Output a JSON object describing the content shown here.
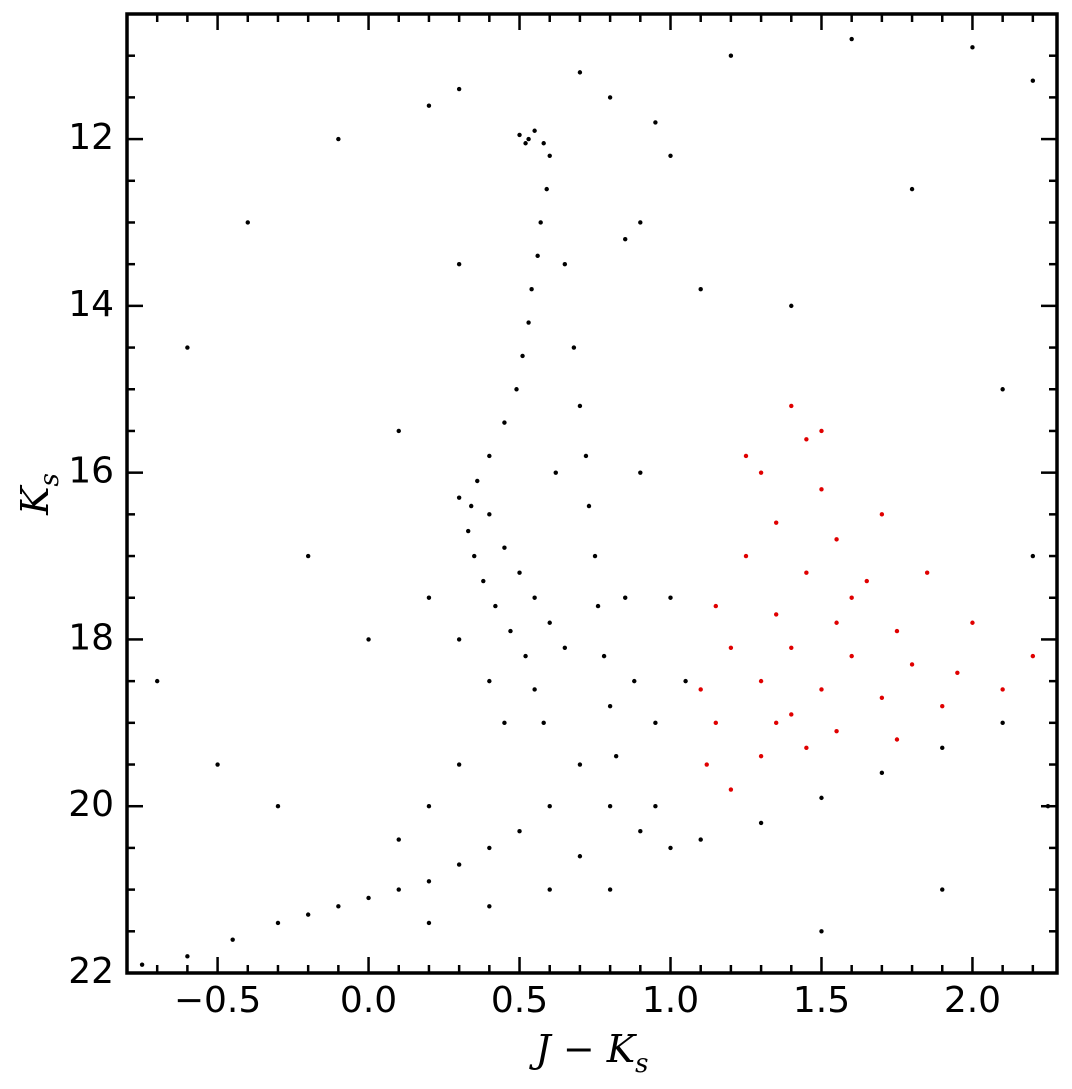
{
  "chart_data": {
    "type": "scatter",
    "x_label": [
      "J − K",
      "s"
    ],
    "y_label": [
      "K",
      "s"
    ],
    "xlim": [
      -0.8,
      2.28
    ],
    "ylim": [
      22,
      10.5
    ],
    "xticks": [
      {
        "value": -0.5,
        "label": "−0.5"
      },
      {
        "value": 0,
        "label": "0.0"
      },
      {
        "value": 0.5,
        "label": "0.5"
      },
      {
        "value": 1,
        "label": "1.0"
      },
      {
        "value": 1.5,
        "label": "1.5"
      },
      {
        "value": 2,
        "label": "2.0"
      }
    ],
    "yticks": [
      12,
      14,
      16,
      18,
      20,
      22
    ],
    "x_minor_divisions": 5,
    "y_minor_divisions": 4,
    "series": [
      {
        "color": "#000000",
        "x": [
          0.5,
          0.53,
          0.55,
          0.58,
          0.52,
          0.6,
          0.59,
          0.57,
          0.56,
          0.54,
          0.53,
          0.51,
          0.49,
          0.45,
          0.4,
          0.36,
          0.34,
          0.33,
          0.35,
          0.38,
          0.42,
          0.47,
          0.52,
          0.55,
          0.58,
          0.3,
          0.4,
          0.45,
          0.5,
          0.55,
          0.6,
          0.65,
          0.68,
          0.7,
          0.72,
          0.73,
          0.75,
          0.76,
          0.78,
          0.8,
          0.82,
          0.65,
          0.85,
          0.9,
          0.62,
          0.85,
          0.88,
          0.95,
          0.7,
          0.8,
          0.6,
          0.5,
          0.4,
          0.3,
          0.2,
          0.1,
          0.0,
          -0.1,
          -0.2,
          -0.3,
          -0.45,
          -0.6,
          -0.75,
          0.9,
          1.0,
          1.1,
          1.3,
          1.5,
          1.7,
          1.9,
          2.1,
          0.6,
          0.4,
          0.8,
          0.2,
          0.7,
          0.3,
          0.2,
          0.1,
          0.45,
          0.4,
          0.3,
          0.2,
          0.9,
          1.0,
          1.05,
          0.95,
          0.2,
          -0.1,
          0.8,
          1.2,
          1.6,
          2.0,
          2.2,
          1.0,
          1.8,
          -0.4,
          -0.6,
          1.4,
          2.1,
          0.1,
          -0.2,
          -0.7,
          2.2,
          -0.5,
          2.25,
          1.9,
          1.5,
          -0.3,
          0.0,
          0.3,
          1.1,
          0.95,
          0.3,
          0.7
        ],
        "values": [
          11.95,
          12.0,
          11.9,
          12.05,
          12.05,
          12.2,
          12.6,
          13.0,
          13.4,
          13.8,
          14.2,
          14.6,
          15.0,
          15.4,
          15.8,
          16.1,
          16.4,
          16.7,
          17.0,
          17.3,
          17.6,
          17.9,
          18.2,
          18.6,
          19.0,
          16.3,
          16.5,
          16.9,
          17.2,
          17.5,
          17.8,
          18.1,
          14.5,
          15.2,
          15.8,
          16.4,
          17.0,
          17.6,
          18.2,
          18.8,
          19.4,
          13.5,
          13.2,
          13.0,
          16.0,
          17.5,
          18.5,
          19.0,
          19.5,
          20.0,
          20.0,
          20.3,
          20.5,
          20.7,
          20.9,
          21.0,
          21.1,
          21.2,
          21.3,
          21.4,
          21.6,
          21.8,
          21.9,
          20.3,
          20.5,
          20.4,
          20.2,
          19.9,
          19.6,
          19.3,
          19.0,
          21.0,
          21.2,
          21.0,
          21.4,
          20.6,
          19.5,
          20.0,
          20.4,
          19.0,
          18.5,
          18.0,
          17.5,
          16.0,
          17.5,
          18.5,
          20.0,
          11.6,
          12.0,
          11.5,
          11.0,
          10.8,
          10.9,
          11.3,
          12.2,
          12.6,
          13.0,
          14.5,
          14.0,
          15.0,
          15.5,
          17.0,
          18.5,
          17.0,
          19.5,
          20.0,
          21.0,
          21.5,
          20.0,
          18.0,
          13.5,
          13.8,
          11.8,
          11.4,
          11.2
        ]
      },
      {
        "color": "#e00000",
        "x": [
          1.4,
          1.45,
          1.3,
          1.5,
          1.35,
          1.55,
          1.25,
          1.45,
          1.65,
          1.15,
          1.35,
          1.55,
          1.75,
          1.2,
          1.4,
          1.6,
          1.8,
          1.95,
          1.1,
          1.3,
          1.5,
          1.7,
          1.9,
          2.1,
          1.15,
          1.35,
          1.55,
          1.75,
          1.12,
          1.3,
          1.45,
          1.2,
          1.6,
          1.7,
          1.85,
          2.0,
          2.2,
          1.25,
          1.5,
          1.4
        ],
        "values": [
          15.2,
          15.6,
          16.0,
          16.2,
          16.6,
          16.8,
          17.0,
          17.2,
          17.3,
          17.6,
          17.7,
          17.8,
          17.9,
          18.1,
          18.1,
          18.2,
          18.3,
          18.4,
          18.6,
          18.5,
          18.6,
          18.7,
          18.8,
          18.6,
          19.0,
          19.0,
          19.1,
          19.2,
          19.5,
          19.4,
          19.3,
          19.8,
          17.5,
          16.5,
          17.2,
          17.8,
          18.2,
          15.8,
          15.5,
          18.9
        ]
      }
    ]
  }
}
